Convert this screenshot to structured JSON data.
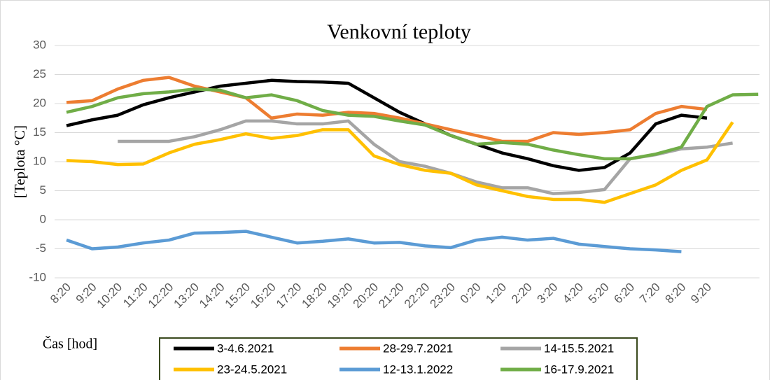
{
  "chart_data": {
    "type": "line",
    "title": "Venkovní teploty",
    "x_label": "Čas [hod]",
    "y_label": "[Teplota °C]",
    "categories": [
      "8:20",
      "9:20",
      "10:20",
      "11:20",
      "12:20",
      "13:20",
      "14:20",
      "15:20",
      "16:20",
      "17:20",
      "18:20",
      "19:20",
      "20:20",
      "21:20",
      "22:20",
      "23:20",
      "0:20",
      "1:20",
      "2:20",
      "3:20",
      "4:20",
      "5:20",
      "6:20",
      "7:20",
      "8:20",
      "9:20",
      null,
      null
    ],
    "ylim": [
      -10,
      30
    ],
    "yticks": [
      -10,
      -5,
      0,
      5,
      10,
      15,
      20,
      25,
      30
    ],
    "grid": true,
    "legend": "bottom",
    "series": [
      {
        "name": "3-4.6.2021",
        "color": "#000000",
        "values": [
          16.2,
          17.2,
          18,
          19.8,
          21,
          22,
          23,
          23.5,
          24,
          23.8,
          23.7,
          23.5,
          21,
          18.5,
          16.5,
          14.5,
          13,
          11.5,
          10.5,
          9.3,
          8.5,
          9,
          11.5,
          16.5,
          18,
          17.5,
          null,
          null
        ]
      },
      {
        "name": "28-29.7.2021",
        "color": "#ed7d31",
        "values": [
          20.2,
          20.5,
          22.5,
          24,
          24.5,
          23,
          22,
          21,
          17.5,
          18.2,
          18,
          18.5,
          18.3,
          17.5,
          16.5,
          15.5,
          14.5,
          13.5,
          13.5,
          15,
          14.7,
          15,
          15.5,
          18.3,
          19.5,
          19,
          null,
          null
        ]
      },
      {
        "name": "14-15.5.2021",
        "color": "#a5a5a5",
        "values": [
          null,
          null,
          13.5,
          13.5,
          13.5,
          14.3,
          15.5,
          17,
          17,
          16.5,
          16.5,
          17,
          13,
          10,
          9.2,
          8,
          6.5,
          5.5,
          5.5,
          4.5,
          4.7,
          5.2,
          10.5,
          11.2,
          12.2,
          12.5,
          13.2,
          null
        ]
      },
      {
        "name": "23-24.5.2021",
        "color": "#ffc000",
        "values": [
          10.2,
          10,
          9.5,
          9.6,
          11.5,
          13,
          13.8,
          14.8,
          14,
          14.5,
          15.5,
          15.5,
          11,
          9.5,
          8.5,
          8,
          6,
          5,
          4,
          3.5,
          3.5,
          3,
          4.5,
          6,
          8.5,
          10.3,
          16.8,
          null
        ]
      },
      {
        "name": "12-13.1.2022",
        "color": "#5b9bd5",
        "values": [
          -3.5,
          -5,
          -4.7,
          -4,
          -3.5,
          -2.3,
          -2.2,
          -2,
          -3,
          -4,
          -3.7,
          -3.3,
          -4,
          -3.9,
          -4.5,
          -4.8,
          -3.5,
          -3,
          -3.5,
          -3.2,
          -4.2,
          -4.6,
          -5,
          -5.2,
          -5.5,
          null,
          null,
          null
        ]
      },
      {
        "name": "16-17.9.2021",
        "color": "#70ad47",
        "values": [
          18.5,
          19.5,
          21,
          21.7,
          22,
          22.5,
          22.3,
          21,
          21.5,
          20.5,
          18.8,
          18,
          17.8,
          17,
          16.3,
          14.5,
          13,
          13.3,
          13,
          12,
          11.2,
          10.5,
          10.5,
          11.3,
          12.5,
          19.5,
          21.5,
          21.6
        ]
      }
    ]
  }
}
